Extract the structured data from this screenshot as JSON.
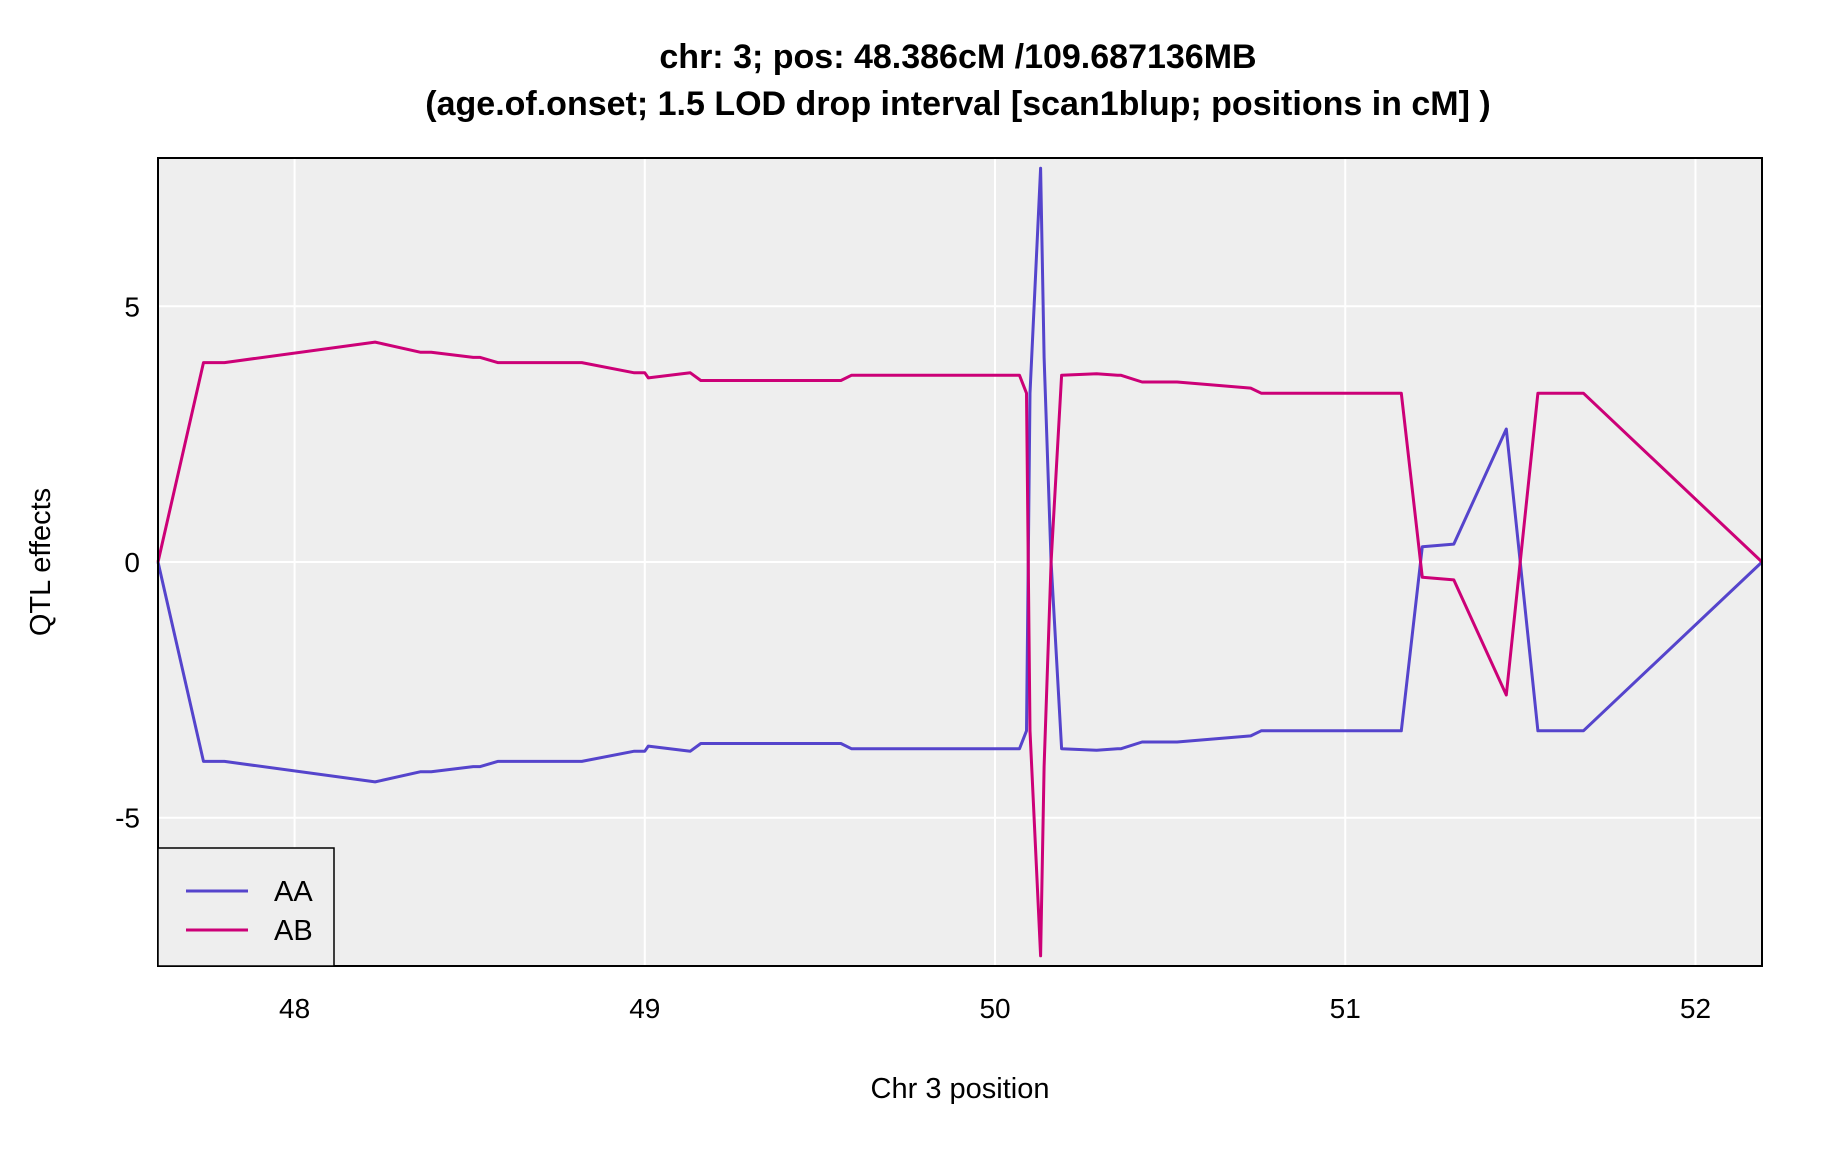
{
  "chart_data": {
    "type": "line",
    "title": "chr: 3; pos: 48.386cM /109.687136MB",
    "subtitle": "(age.of.onset; 1.5 LOD drop interval [scan1blup; positions in cM] )",
    "xlabel": "Chr 3 position",
    "ylabel": "QTL effects",
    "xlim": [
      47.61,
      52.19
    ],
    "ylim": [
      -7.9,
      7.9
    ],
    "x_ticks": [
      48,
      49,
      50,
      51,
      52
    ],
    "x_tick_labels": [
      "48",
      "49",
      "50",
      "51",
      "52"
    ],
    "y_ticks": [
      -5,
      0,
      5
    ],
    "y_tick_labels": [
      "-5",
      "0",
      "5"
    ],
    "grid": true,
    "background": "#eeeeee",
    "legend_position": "bottom-left",
    "series": [
      {
        "name": "AA",
        "color": "#5544cc",
        "x": [
          47.61,
          47.74,
          47.8,
          48.23,
          48.36,
          48.39,
          48.51,
          48.53,
          48.58,
          48.82,
          48.97,
          49.0,
          49.01,
          49.13,
          49.16,
          49.56,
          49.59,
          50.07,
          50.09,
          50.1,
          50.12,
          50.13,
          50.14,
          50.16,
          50.19,
          50.29,
          50.35,
          50.36,
          50.42,
          50.44,
          50.52,
          50.73,
          50.76,
          51.16,
          51.22,
          51.31,
          51.46,
          51.55,
          51.68,
          52.19
        ],
        "y": [
          0,
          -3.9,
          -3.9,
          -4.3,
          -4.1,
          -4.1,
          -4.0,
          -4.0,
          -3.9,
          -3.9,
          -3.7,
          -3.7,
          -3.6,
          -3.7,
          -3.55,
          -3.55,
          -3.65,
          -3.65,
          -3.3,
          3.3,
          6.2,
          7.7,
          4.0,
          0.0,
          -3.65,
          -3.68,
          -3.65,
          -3.65,
          -3.52,
          -3.52,
          -3.52,
          -3.4,
          -3.3,
          -3.3,
          0.3,
          0.35,
          2.6,
          -3.3,
          -3.3,
          0
        ]
      },
      {
        "name": "AB",
        "color": "#cc0077",
        "x": [
          47.61,
          47.74,
          47.8,
          48.23,
          48.36,
          48.39,
          48.51,
          48.53,
          48.58,
          48.82,
          48.97,
          49.0,
          49.01,
          49.13,
          49.16,
          49.56,
          49.59,
          50.07,
          50.09,
          50.1,
          50.12,
          50.13,
          50.14,
          50.16,
          50.19,
          50.29,
          50.35,
          50.36,
          50.42,
          50.44,
          50.52,
          50.73,
          50.76,
          51.16,
          51.22,
          51.31,
          51.46,
          51.55,
          51.68,
          52.19
        ],
        "y": [
          0,
          3.9,
          3.9,
          4.3,
          4.1,
          4.1,
          4.0,
          4.0,
          3.9,
          3.9,
          3.7,
          3.7,
          3.6,
          3.7,
          3.55,
          3.55,
          3.65,
          3.65,
          3.3,
          -3.3,
          -6.2,
          -7.7,
          -4.0,
          0.0,
          3.65,
          3.68,
          3.65,
          3.65,
          3.52,
          3.52,
          3.52,
          3.4,
          3.3,
          3.3,
          -0.3,
          -0.35,
          -2.6,
          3.3,
          3.3,
          0
        ]
      }
    ]
  }
}
